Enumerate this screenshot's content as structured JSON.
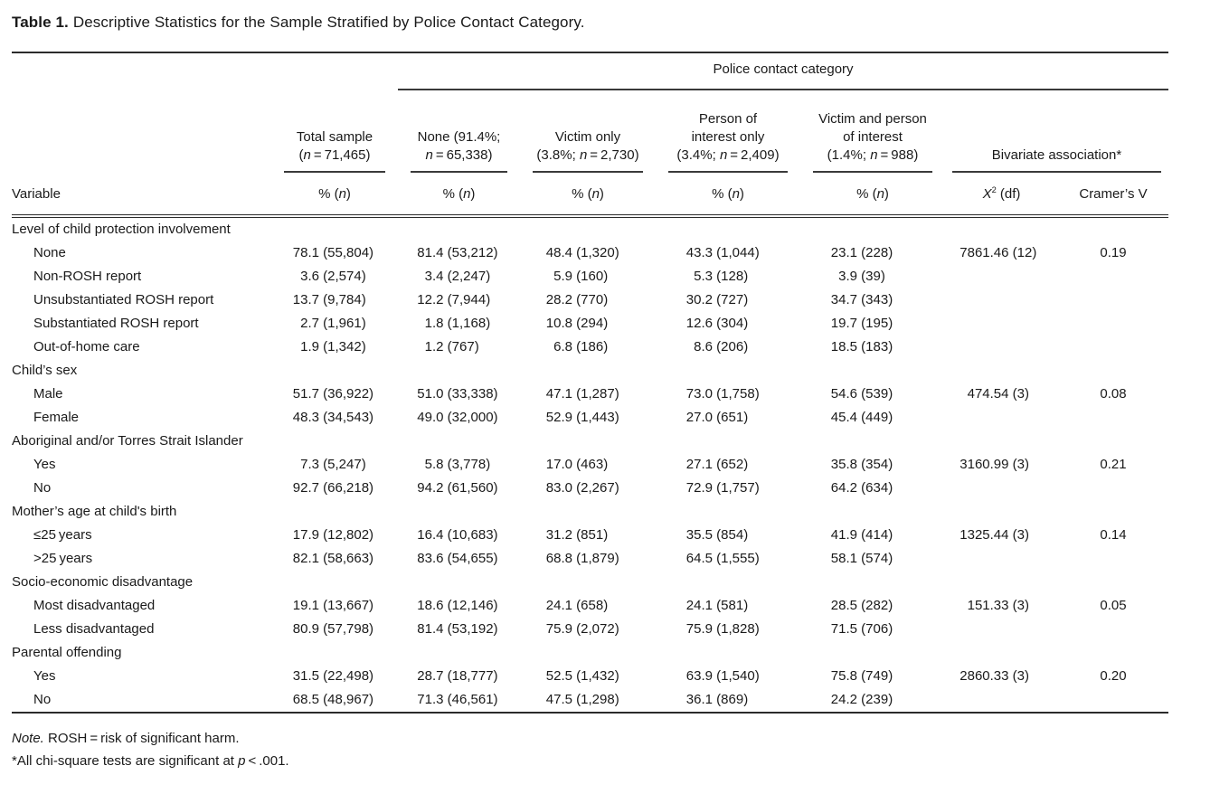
{
  "page": {
    "background": "#ffffff",
    "text_color": "#1a1a1a",
    "rule_color": "#2b2b2b"
  },
  "title": {
    "label": "Table 1.",
    "text": "Descriptive Statistics for the Sample Stratified by Police Contact Category."
  },
  "header": {
    "spanner": "Police contact category",
    "variable_label": "Variable",
    "value_sub_label": "% (n)",
    "columns": [
      {
        "lines": [
          "Total sample",
          "(n = 71,465)"
        ]
      },
      {
        "lines": [
          "None (91.4%;",
          "n = 65,338)"
        ]
      },
      {
        "lines": [
          "Victim only",
          "(3.8%; n = 2,730)"
        ]
      },
      {
        "lines": [
          "Person of",
          "interest only",
          "(3.4%; n = 2,409)"
        ]
      },
      {
        "lines": [
          "Victim and person",
          "of interest",
          "(1.4%; n = 988)"
        ]
      }
    ],
    "bivariate": {
      "label": "Bivariate association*",
      "chi_label": "X2 (df)",
      "cramer_label": "Cramer’s V"
    }
  },
  "rows": [
    {
      "type": "category",
      "label": "Level of child protection involvement"
    },
    {
      "type": "item",
      "label": "None",
      "values": [
        "78.1 (55,804)",
        "81.4 (53,212)",
        "48.4 (1,320)",
        "43.3 (1,044)",
        "23.1 (228)"
      ],
      "chi": "7861.46 (12)",
      "cramer": "0.19"
    },
    {
      "type": "item",
      "label": "Non-ROSH report",
      "values": [
        "3.6 (2,574)",
        "3.4 (2,247)",
        "5.9 (160)",
        "5.3 (128)",
        "3.9 (39)"
      ],
      "chi": "",
      "cramer": ""
    },
    {
      "type": "item",
      "label": "Unsubstantiated ROSH report",
      "values": [
        "13.7 (9,784)",
        "12.2 (7,944)",
        "28.2 (770)",
        "30.2 (727)",
        "34.7 (343)"
      ],
      "chi": "",
      "cramer": ""
    },
    {
      "type": "item",
      "label": "Substantiated ROSH report",
      "values": [
        "2.7 (1,961)",
        "1.8 (1,168)",
        "10.8 (294)",
        "12.6 (304)",
        "19.7 (195)"
      ],
      "chi": "",
      "cramer": ""
    },
    {
      "type": "item",
      "label": "Out-of-home care",
      "values": [
        "1.9 (1,342)",
        "1.2 (767)",
        "6.8 (186)",
        "8.6 (206)",
        "18.5 (183)"
      ],
      "chi": "",
      "cramer": ""
    },
    {
      "type": "category",
      "label": "Child’s sex"
    },
    {
      "type": "item",
      "label": "Male",
      "values": [
        "51.7 (36,922)",
        "51.0 (33,338)",
        "47.1 (1,287)",
        "73.0 (1,758)",
        "54.6 (539)"
      ],
      "chi": "474.54 (3)",
      "cramer": "0.08"
    },
    {
      "type": "item",
      "label": "Female",
      "values": [
        "48.3 (34,543)",
        "49.0 (32,000)",
        "52.9 (1,443)",
        "27.0 (651)",
        "45.4 (449)"
      ],
      "chi": "",
      "cramer": ""
    },
    {
      "type": "category",
      "label": "Aboriginal and/or Torres Strait Islander"
    },
    {
      "type": "item",
      "label": "Yes",
      "values": [
        "7.3 (5,247)",
        "5.8 (3,778)",
        "17.0 (463)",
        "27.1 (652)",
        "35.8 (354)"
      ],
      "chi": "3160.99 (3)",
      "cramer": "0.21"
    },
    {
      "type": "item",
      "label": "No",
      "values": [
        "92.7 (66,218)",
        "94.2 (61,560)",
        "83.0 (2,267)",
        "72.9 (1,757)",
        "64.2 (634)"
      ],
      "chi": "",
      "cramer": ""
    },
    {
      "type": "category",
      "label": "Mother’s age at child's birth"
    },
    {
      "type": "item",
      "label": "≤25 years",
      "values": [
        "17.9 (12,802)",
        "16.4 (10,683)",
        "31.2 (851)",
        "35.5 (854)",
        "41.9 (414)"
      ],
      "chi": "1325.44 (3)",
      "cramer": "0.14"
    },
    {
      "type": "item",
      "label": ">25 years",
      "values": [
        "82.1 (58,663)",
        "83.6 (54,655)",
        "68.8 (1,879)",
        "64.5 (1,555)",
        "58.1 (574)"
      ],
      "chi": "",
      "cramer": ""
    },
    {
      "type": "category",
      "label": "Socio-economic disadvantage"
    },
    {
      "type": "item",
      "label": "Most disadvantaged",
      "values": [
        "19.1 (13,667)",
        "18.6 (12,146)",
        "24.1 (658)",
        "24.1 (581)",
        "28.5 (282)"
      ],
      "chi": "151.33 (3)",
      "cramer": "0.05"
    },
    {
      "type": "item",
      "label": "Less disadvantaged",
      "values": [
        "80.9 (57,798)",
        "81.4 (53,192)",
        "75.9 (2,072)",
        "75.9 (1,828)",
        "71.5 (706)"
      ],
      "chi": "",
      "cramer": ""
    },
    {
      "type": "category",
      "label": "Parental offending"
    },
    {
      "type": "item",
      "label": "Yes",
      "values": [
        "31.5 (22,498)",
        "28.7 (18,777)",
        "52.5 (1,432)",
        "63.9 (1,540)",
        "75.8 (749)"
      ],
      "chi": "2860.33 (3)",
      "cramer": "0.20"
    },
    {
      "type": "item",
      "label": "No",
      "values": [
        "68.5 (48,967)",
        "71.3 (46,561)",
        "47.5 (1,298)",
        "36.1 (869)",
        "24.2 (239)"
      ],
      "chi": "",
      "cramer": ""
    }
  ],
  "notes": {
    "line1": {
      "italic": "Note.",
      "text": " ROSH = risk of significant harm."
    },
    "line2": {
      "pre": "*All chi-square tests are significant at ",
      "italic": "p",
      "post": " < .001."
    }
  }
}
